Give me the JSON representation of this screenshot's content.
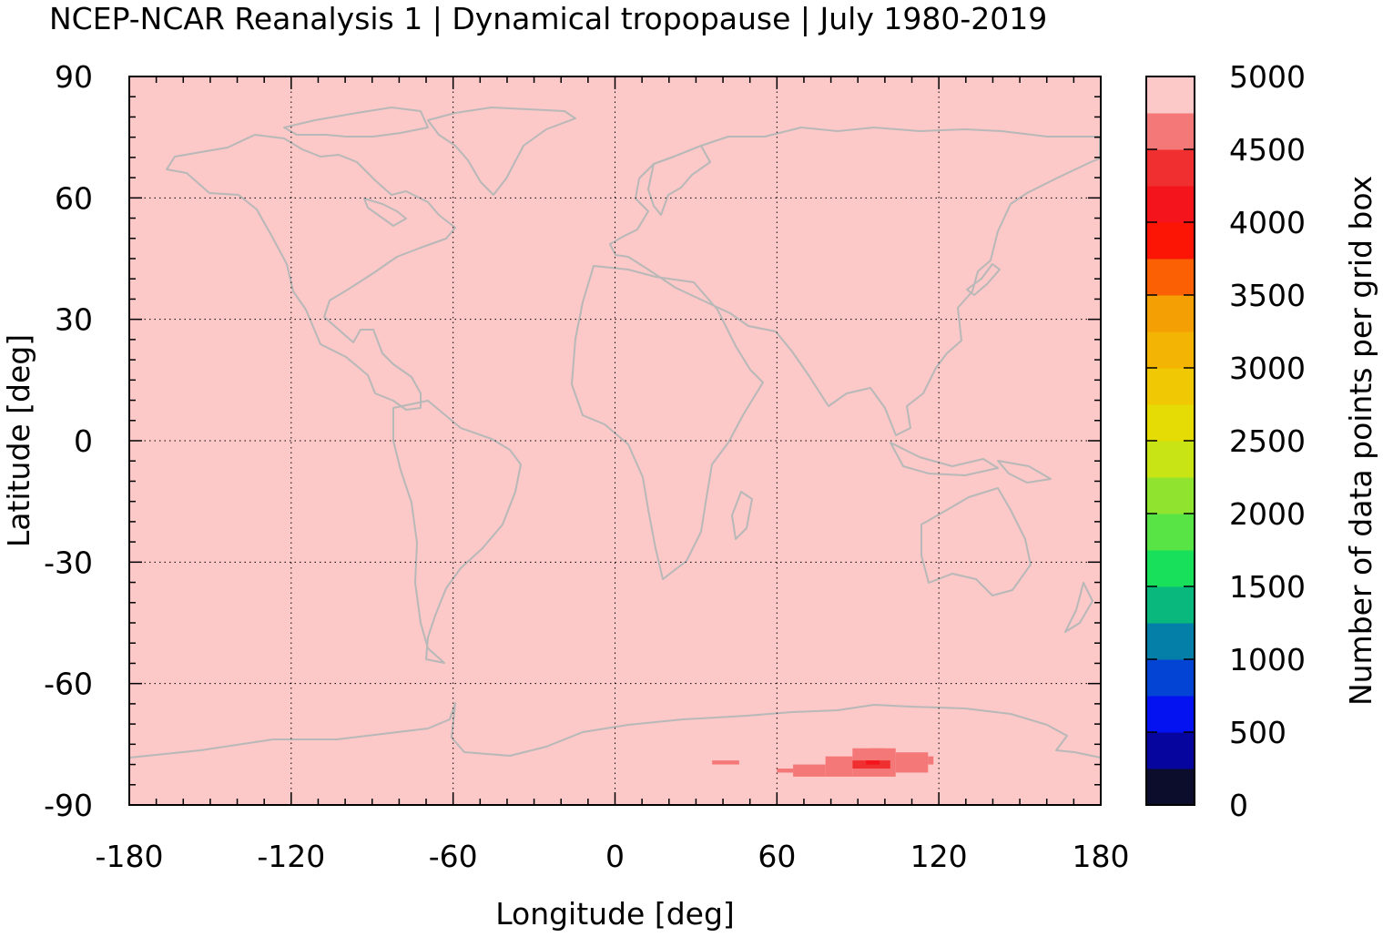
{
  "chart_data": {
    "type": "heatmap",
    "title": "NCEP-NCAR Reanalysis 1 | Dynamical tropopause | July 1980-2019",
    "xlabel": "Longitude [deg]",
    "ylabel": "Latitude [deg]",
    "colorbar_label": "Number of data points per grid box",
    "xlim": [
      -180,
      180
    ],
    "ylim": [
      -90,
      90
    ],
    "x_ticks": [
      -180,
      -120,
      -60,
      0,
      60,
      120,
      180
    ],
    "x_tick_labels": [
      "-180",
      "-120",
      "-60",
      "0",
      "60",
      "120",
      "180"
    ],
    "y_ticks": [
      90,
      60,
      30,
      0,
      -30,
      -60,
      -90
    ],
    "y_tick_labels": [
      "90",
      "60",
      "30",
      "0",
      "-30",
      "-60",
      "-90"
    ],
    "grid": true,
    "colorbar": {
      "range": [
        0,
        5000
      ],
      "ticks": [
        0,
        500,
        1000,
        1500,
        2000,
        2500,
        3000,
        3500,
        4000,
        4500,
        5000
      ],
      "tick_labels": [
        "0",
        "500",
        "1000",
        "1500",
        "2000",
        "2500",
        "3000",
        "3500",
        "4000",
        "4500",
        "5000"
      ],
      "bin_width": 250,
      "colors": [
        "#0c0c2c",
        "#06069e",
        "#0412f2",
        "#0444d4",
        "#0480a8",
        "#08b87c",
        "#18e05a",
        "#58e444",
        "#90e430",
        "#c8e414",
        "#e4dc04",
        "#f0c804",
        "#f4b404",
        "#f4a004",
        "#fc6004",
        "#fc1404",
        "#f4141c",
        "#f03030",
        "#f47878",
        "#fcc8c8"
      ]
    },
    "background_value": 5000,
    "background_color": "#fcc8c8",
    "lower_cells": [
      {
        "lon": [
          36,
          46
        ],
        "lat": [
          -80,
          -79
        ],
        "value": 4600,
        "color": "#f47878"
      },
      {
        "lon": [
          60,
          66
        ],
        "lat": [
          -82,
          -81
        ],
        "value": 4600,
        "color": "#f47878"
      },
      {
        "lon": [
          66,
          78
        ],
        "lat": [
          -83,
          -80
        ],
        "value": 4600,
        "color": "#f47878"
      },
      {
        "lon": [
          78,
          88
        ],
        "lat": [
          -83,
          -78
        ],
        "value": 4600,
        "color": "#f47878"
      },
      {
        "lon": [
          88,
          104
        ],
        "lat": [
          -83,
          -76
        ],
        "value": 4600,
        "color": "#f47878"
      },
      {
        "lon": [
          94,
          100
        ],
        "lat": [
          -77,
          -76
        ],
        "value": 4600,
        "color": "#f47878"
      },
      {
        "lon": [
          104,
          116
        ],
        "lat": [
          -82,
          -77
        ],
        "value": 4600,
        "color": "#f47878"
      },
      {
        "lon": [
          116,
          118
        ],
        "lat": [
          -80,
          -78
        ],
        "value": 4600,
        "color": "#f47878"
      },
      {
        "lon": [
          88,
          102
        ],
        "lat": [
          -81,
          -79
        ],
        "value": 4300,
        "color": "#f03030"
      },
      {
        "lon": [
          93,
          98
        ],
        "lat": [
          -80,
          -79
        ],
        "value": 4100,
        "color": "#f4141c"
      }
    ]
  },
  "map_overlay": {
    "coastline_color": "#b8b8b8"
  }
}
